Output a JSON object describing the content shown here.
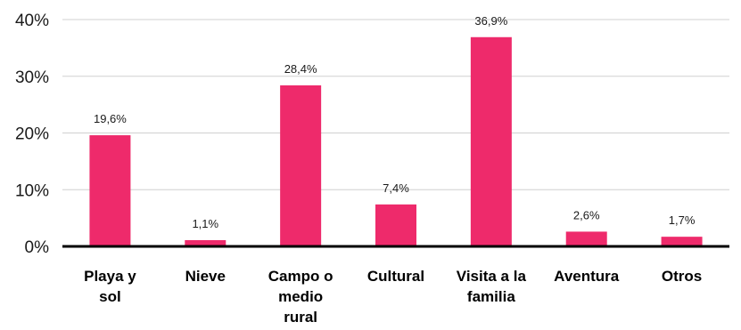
{
  "chart_data": {
    "type": "bar",
    "categories": [
      [
        "Playa y",
        "sol"
      ],
      [
        "Nieve"
      ],
      [
        "Campo o",
        "medio",
        "rural"
      ],
      [
        "Cultural"
      ],
      [
        "Visita a la",
        "familia"
      ],
      [
        "Aventura"
      ],
      [
        "Otros"
      ]
    ],
    "values": [
      19.6,
      1.1,
      28.4,
      7.4,
      36.9,
      2.6,
      1.7
    ],
    "data_labels": [
      "19,6%",
      "1,1%",
      "28,4%",
      "7,4%",
      "36,9%",
      "2,6%",
      "1,7%"
    ],
    "y_ticks": [
      0,
      10,
      20,
      30,
      40
    ],
    "y_tick_labels": [
      "0%",
      "10%",
      "20%",
      "30%",
      "40%"
    ],
    "ylim": [
      0,
      40
    ],
    "title": "",
    "xlabel": "",
    "ylabel": "",
    "grid": true,
    "legend": "none",
    "bar_color": "#ee2a6b",
    "grid_color": "#d0d0d0",
    "axis_color": "#000000"
  }
}
